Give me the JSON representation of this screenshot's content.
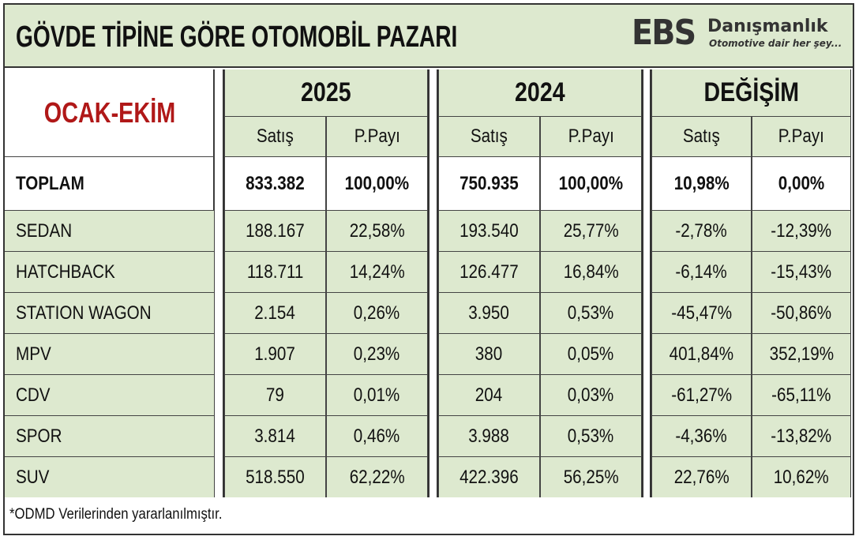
{
  "header": {
    "title": "GÖVDE TİPİNE GÖRE OTOMOBİL PAZARI",
    "logo_mark": "EBS",
    "logo_name": "Danışmanlık",
    "logo_tagline": "Otomotive dair her şey..."
  },
  "table": {
    "period_label": "OCAK-EKİM",
    "groups": [
      "2025",
      "2024",
      "DEĞİŞİM"
    ],
    "subheaders": [
      "Satış",
      "P.Payı",
      "Satış",
      "P.Payı",
      "Satış",
      "P.Payı"
    ],
    "rows": [
      {
        "label": "TOPLAM",
        "values": [
          "833.382",
          "100,00%",
          "750.935",
          "100,00%",
          "10,98%",
          "0,00%"
        ]
      },
      {
        "label": "SEDAN",
        "values": [
          "188.167",
          "22,58%",
          "193.540",
          "25,77%",
          "-2,78%",
          "-12,39%"
        ]
      },
      {
        "label": "HATCHBACK",
        "values": [
          "118.711",
          "14,24%",
          "126.477",
          "16,84%",
          "-6,14%",
          "-15,43%"
        ]
      },
      {
        "label": "STATION WAGON",
        "values": [
          "2.154",
          "0,26%",
          "3.950",
          "0,53%",
          "-45,47%",
          "-50,86%"
        ]
      },
      {
        "label": "MPV",
        "values": [
          "1.907",
          "0,23%",
          "380",
          "0,05%",
          "401,84%",
          "352,19%"
        ]
      },
      {
        "label": "CDV",
        "values": [
          "79",
          "0,01%",
          "204",
          "0,03%",
          "-61,27%",
          "-65,11%"
        ]
      },
      {
        "label": "SPOR",
        "values": [
          "3.814",
          "0,46%",
          "3.988",
          "0,53%",
          "-4,36%",
          "-13,82%"
        ]
      },
      {
        "label": "SUV",
        "values": [
          "518.550",
          "62,22%",
          "422.396",
          "56,25%",
          "22,76%",
          "10,62%"
        ]
      }
    ]
  },
  "footnote": "*ODMD Verilerinden yararlanılmıştır.",
  "colors": {
    "header_bg": "#dde9cf",
    "period_label": "#b01818",
    "border": "#333333"
  }
}
